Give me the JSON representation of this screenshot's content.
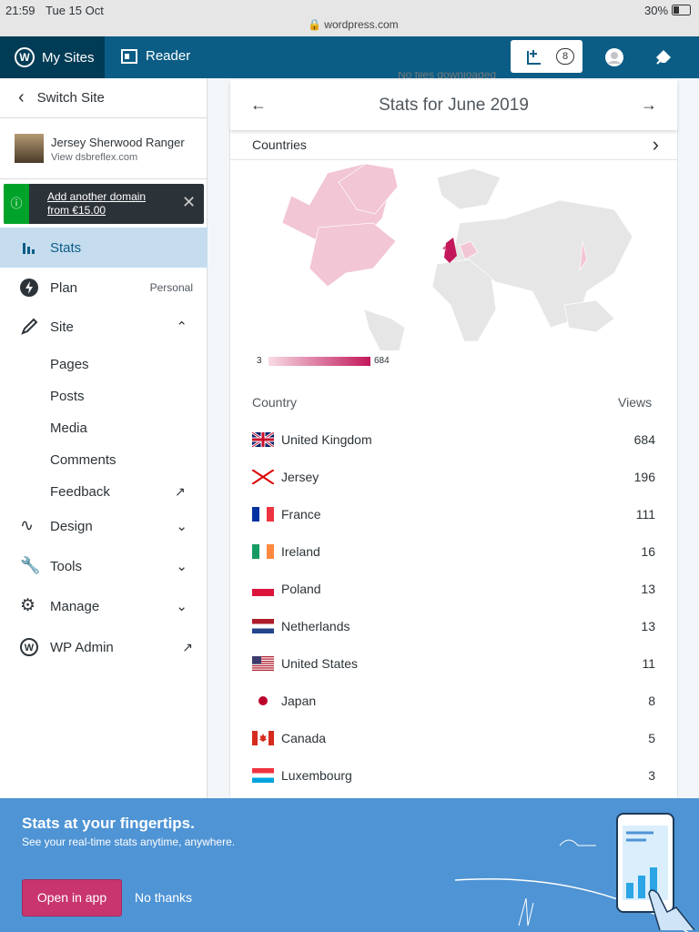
{
  "status_bar": {
    "time": "21:59",
    "date": "Tue 15 Oct",
    "url": "wordpress.com",
    "battery": "30%"
  },
  "top_bar": {
    "my_sites": "My Sites",
    "reader": "Reader",
    "notification_count": "8"
  },
  "sidebar": {
    "switch_site": "Switch Site",
    "site_name": "Jersey Sherwood Ranger",
    "site_url": "View dsbreflex.com",
    "domain_notice": "Add another domain from €15.00",
    "menu": [
      {
        "label": "Stats"
      },
      {
        "label": "Plan",
        "badge": "Personal"
      },
      {
        "label": "Site"
      }
    ],
    "site_items": [
      "Pages",
      "Posts",
      "Media",
      "Comments",
      "Feedback"
    ],
    "more_menu": [
      "Design",
      "Tools",
      "Manage",
      "WP Admin"
    ]
  },
  "main": {
    "above_text": "No files downloaded",
    "title": "Stats for June 2019",
    "section": "Countries",
    "legend_min": "3",
    "legend_max": "684",
    "table": {
      "header": [
        "Country",
        "Views"
      ],
      "rows": [
        [
          "United Kingdom",
          684
        ],
        [
          "Jersey",
          196
        ],
        [
          "France",
          111
        ],
        [
          "Ireland",
          16
        ],
        [
          "Poland",
          13
        ],
        [
          "Netherlands",
          13
        ],
        [
          "United States",
          11
        ],
        [
          "Japan",
          8
        ],
        [
          "Canada",
          5
        ],
        [
          "Luxembourg",
          3
        ]
      ]
    }
  },
  "app_banner": {
    "title": "Stats at your fingertips.",
    "subtitle": "See your real-time stats anytime, anywhere.",
    "open_button": "Open in app",
    "dismiss_button": "No thanks"
  }
}
